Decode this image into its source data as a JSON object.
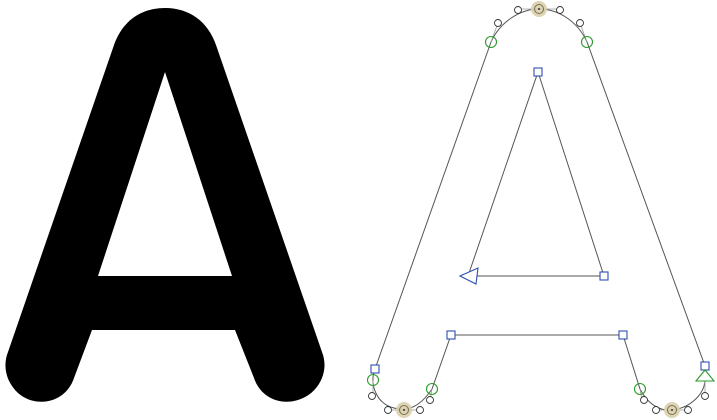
{
  "views": {
    "filled_preview": {
      "glyph": "A",
      "fill_color": "#000000"
    },
    "outline_editor": {
      "glyph": "A",
      "outline_color": "#555555",
      "point_colors": {
        "corner": "#2f4fb3",
        "smooth": "#2a9a2a",
        "offcurve": "#333333",
        "selected_highlight": "#d8cfaa"
      }
    }
  },
  "icons": {
    "corner_point": "square",
    "smooth_point": "circle",
    "offcurve_point": "small-circle",
    "start_point": "triangle"
  }
}
